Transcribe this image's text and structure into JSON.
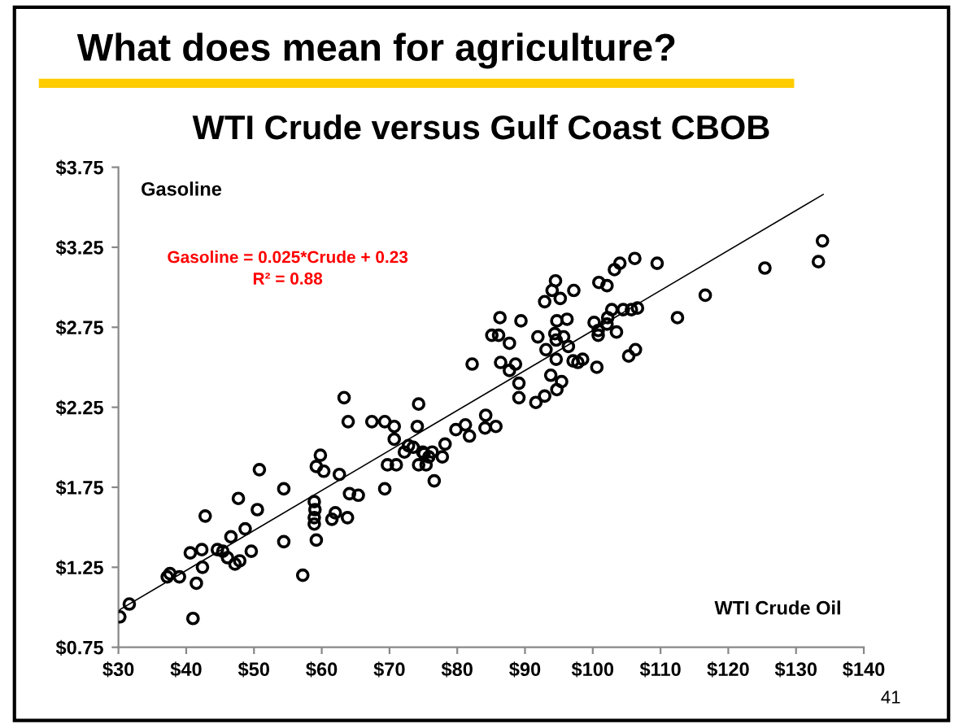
{
  "chart_data": {
    "type": "scatter",
    "title": "What does mean for agriculture?",
    "subtitle": "WTI Crude versus Gulf Coast CBOB",
    "xlabel": "WTI Crude Oil",
    "ylabel": "Gasoline",
    "annotations": [
      "Gasoline = 0.025*Crude + 0.23",
      "R² = 0.88",
      "41"
    ],
    "series": [
      {
        "color": "#000000",
        "marker": "circle",
        "x": [
          30.2,
          31.6,
          37.2,
          37.6,
          39.0,
          40.6,
          41.0,
          41.5,
          42.4,
          42.3,
          42.8,
          44.6,
          45.4,
          46.1,
          46.6,
          47.2,
          47.9,
          47.7,
          48.7,
          49.6,
          50.5,
          50.8,
          54.4,
          54.4,
          57.2,
          58.9,
          59.0,
          58.9,
          58.9,
          59.2,
          59.2,
          59.8,
          60.3,
          61.5,
          62.0,
          62.6,
          63.3,
          63.8,
          63.9,
          64.1,
          65.4,
          67.4,
          69.3,
          69.3,
          69.7,
          70.7,
          70.7,
          71.0,
          72.2,
          72.8,
          73.5,
          74.1,
          74.3,
          74.3,
          74.9,
          75.1,
          75.4,
          75.8,
          76.3,
          76.6,
          77.8,
          78.2,
          79.8,
          81.2,
          81.8,
          82.2,
          84.2,
          84.1,
          85.7,
          85.1,
          86.1,
          86.3,
          86.4,
          87.7,
          87.7,
          88.6,
          89.4,
          89.1,
          89.1,
          91.6,
          91.9,
          92.9,
          92.9,
          93.1,
          93.8,
          94.0,
          94.5,
          94.7,
          94.4,
          94.6,
          94.6,
          94.7,
          95.2,
          95.4,
          95.7,
          96.2,
          96.4,
          97.2,
          97.1,
          97.8,
          98.5,
          100.6,
          100.2,
          100.8,
          100.8,
          100.9,
          102.1,
          102.1,
          102.2,
          102.8,
          103.5,
          103.2,
          104.0,
          104.5,
          105.3,
          105.7,
          106.2,
          106.3,
          106.6,
          109.5,
          112.5,
          116.6,
          125.4,
          133.3,
          133.9
        ],
        "values": [
          0.94,
          1.02,
          1.19,
          1.21,
          1.19,
          1.34,
          0.93,
          1.15,
          1.25,
          1.36,
          1.57,
          1.36,
          1.35,
          1.31,
          1.44,
          1.27,
          1.29,
          1.68,
          1.49,
          1.35,
          1.61,
          1.86,
          1.41,
          1.74,
          1.2,
          1.66,
          1.61,
          1.56,
          1.52,
          1.42,
          1.88,
          1.95,
          1.85,
          1.55,
          1.59,
          1.83,
          2.31,
          1.56,
          2.16,
          1.71,
          1.7,
          2.16,
          2.16,
          1.74,
          1.89,
          2.13,
          2.05,
          1.89,
          1.97,
          2.01,
          2.0,
          2.13,
          1.89,
          2.27,
          1.97,
          1.96,
          1.89,
          1.94,
          1.97,
          1.79,
          1.94,
          2.02,
          2.11,
          2.14,
          2.07,
          2.52,
          2.2,
          2.12,
          2.13,
          2.7,
          2.7,
          2.81,
          2.53,
          2.65,
          2.48,
          2.52,
          2.79,
          2.4,
          2.31,
          2.28,
          2.69,
          2.32,
          2.91,
          2.61,
          2.45,
          2.98,
          3.04,
          2.79,
          2.71,
          2.67,
          2.55,
          2.36,
          2.93,
          2.41,
          2.69,
          2.8,
          2.63,
          2.98,
          2.54,
          2.53,
          2.55,
          2.5,
          2.78,
          2.7,
          2.73,
          3.03,
          3.01,
          2.77,
          2.81,
          2.86,
          2.72,
          3.11,
          3.15,
          2.86,
          2.57,
          2.86,
          3.18,
          2.61,
          2.87,
          3.15,
          2.81,
          2.95,
          3.12,
          3.16,
          3.29
        ]
      },
      {
        "type": "line",
        "color": "#000000",
        "x": [
          30,
          134
        ],
        "values": [
          0.98,
          3.58
        ]
      }
    ],
    "xlim": [
      30,
      140
    ],
    "ylim": [
      0.75,
      3.75
    ],
    "xticks": [
      {
        "value": 30,
        "label": "$30"
      },
      {
        "value": 40,
        "label": "$40"
      },
      {
        "value": 50,
        "label": "$50"
      },
      {
        "value": 60,
        "label": "$60"
      },
      {
        "value": 70,
        "label": "$70"
      },
      {
        "value": 80,
        "label": "$80"
      },
      {
        "value": 90,
        "label": "$90"
      },
      {
        "value": 100,
        "label": "$100"
      },
      {
        "value": 110,
        "label": "$110"
      },
      {
        "value": 120,
        "label": "$120"
      },
      {
        "value": 130,
        "label": "$130"
      },
      {
        "value": 140,
        "label": "$140"
      }
    ],
    "yticks": [
      {
        "value": 0.75,
        "label": "$0.75"
      },
      {
        "value": 1.25,
        "label": "$1.25"
      },
      {
        "value": 1.75,
        "label": "$1.75"
      },
      {
        "value": 2.25,
        "label": "$2.25"
      },
      {
        "value": 2.75,
        "label": "$2.75"
      },
      {
        "value": 3.25,
        "label": "$3.25"
      },
      {
        "value": 3.75,
        "label": "$3.75"
      }
    ],
    "grid": false,
    "legend": false
  }
}
